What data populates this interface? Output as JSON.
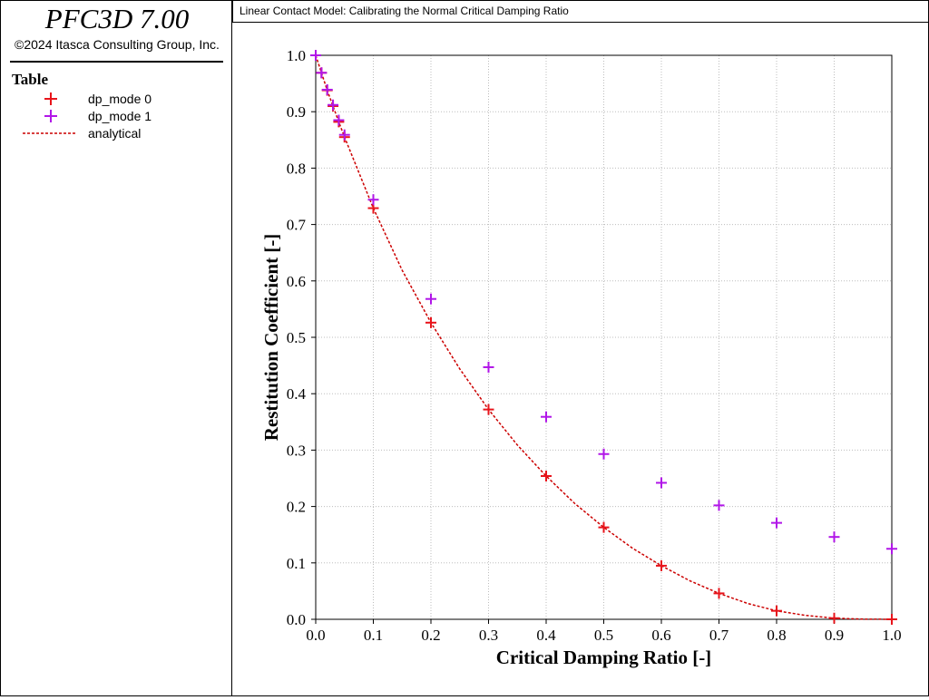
{
  "app": {
    "title": "PFC3D 7.00",
    "copyright": "©2024 Itasca Consulting Group, Inc."
  },
  "legend": {
    "heading": "Table",
    "items": [
      {
        "label": "dp_mode 0",
        "color": "#e8141b",
        "symbol": "plus"
      },
      {
        "label": "dp_mode 1",
        "color": "#b116e8",
        "symbol": "plus"
      },
      {
        "label": "analytical",
        "color": "#cc0000",
        "symbol": "dashed-line"
      }
    ]
  },
  "plot_title": "Linear Contact Model: Calibrating the Normal Critical Damping Ratio",
  "chart_data": {
    "type": "scatter",
    "title": "Linear Contact Model: Calibrating the Normal Critical Damping Ratio",
    "xlabel": "Critical Damping Ratio [-]",
    "ylabel": "Restitution Coefficient [-]",
    "xlim": [
      0.0,
      1.0
    ],
    "ylim": [
      0.0,
      1.0
    ],
    "xticks": [
      "0.0",
      "0.1",
      "0.2",
      "0.3",
      "0.4",
      "0.5",
      "0.6",
      "0.7",
      "0.8",
      "0.9",
      "1.0"
    ],
    "yticks": [
      "0.0",
      "0.1",
      "0.2",
      "0.3",
      "0.4",
      "0.5",
      "0.6",
      "0.7",
      "0.8",
      "0.9",
      "1.0"
    ],
    "grid": true,
    "legend_position": "left-panel",
    "series": [
      {
        "name": "dp_mode 0",
        "type": "scatter",
        "marker": "plus",
        "color": "#e8141b",
        "x": [
          0.0,
          0.01,
          0.02,
          0.03,
          0.04,
          0.05,
          0.1,
          0.2,
          0.3,
          0.4,
          0.5,
          0.6,
          0.7,
          0.8,
          0.9,
          1.0
        ],
        "y": [
          1.0,
          0.969,
          0.938,
          0.91,
          0.882,
          0.855,
          0.729,
          0.526,
          0.372,
          0.254,
          0.163,
          0.095,
          0.046,
          0.015,
          0.002,
          0.0
        ]
      },
      {
        "name": "dp_mode 1",
        "type": "scatter",
        "marker": "plus",
        "color": "#b116e8",
        "x": [
          0.0,
          0.01,
          0.02,
          0.03,
          0.04,
          0.05,
          0.1,
          0.2,
          0.3,
          0.4,
          0.5,
          0.6,
          0.7,
          0.8,
          0.9,
          1.0
        ],
        "y": [
          1.0,
          0.969,
          0.939,
          0.912,
          0.885,
          0.859,
          0.744,
          0.568,
          0.447,
          0.359,
          0.293,
          0.242,
          0.202,
          0.171,
          0.146,
          0.125
        ]
      },
      {
        "name": "analytical",
        "type": "line",
        "style": "dashed",
        "color": "#cc0000",
        "x": [
          0.0,
          0.01,
          0.02,
          0.03,
          0.04,
          0.05,
          0.1,
          0.15,
          0.2,
          0.25,
          0.3,
          0.35,
          0.4,
          0.45,
          0.5,
          0.55,
          0.6,
          0.65,
          0.7,
          0.75,
          0.8,
          0.85,
          0.9,
          0.95,
          1.0
        ],
        "y": [
          1.0,
          0.969,
          0.938,
          0.91,
          0.882,
          0.855,
          0.729,
          0.619,
          0.526,
          0.444,
          0.372,
          0.309,
          0.254,
          0.205,
          0.163,
          0.126,
          0.095,
          0.068,
          0.046,
          0.028,
          0.015,
          0.007,
          0.002,
          0.0003,
          0.0
        ]
      }
    ]
  }
}
